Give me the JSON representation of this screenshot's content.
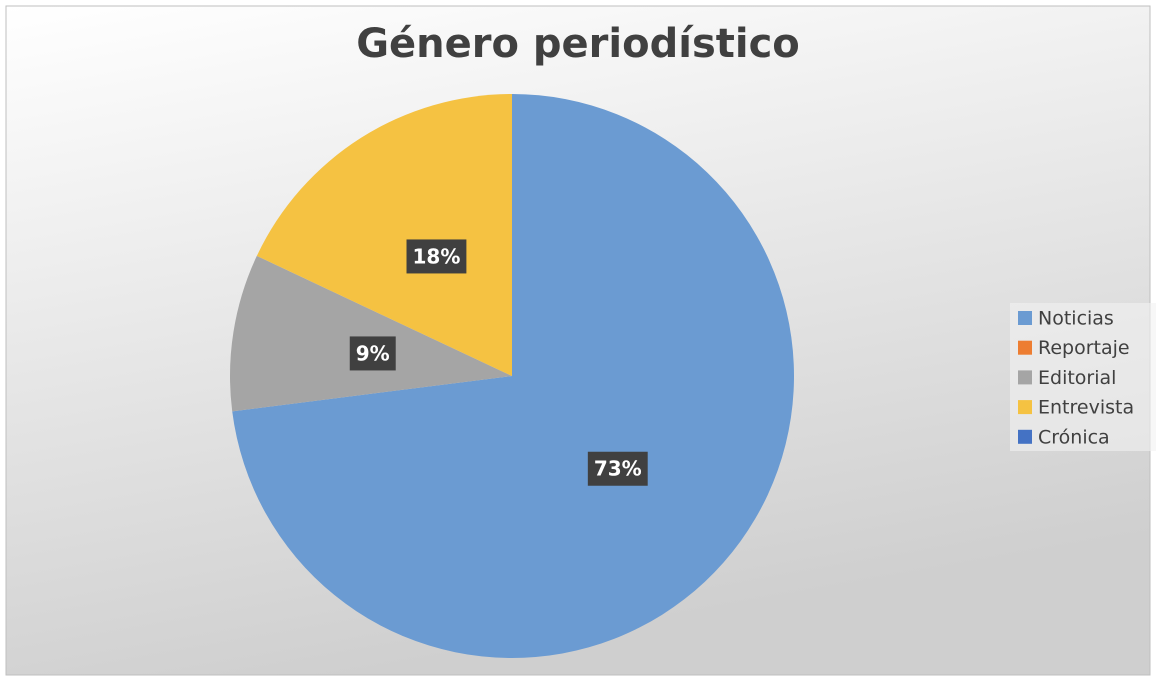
{
  "chart_data": {
    "type": "pie",
    "title": "Género periodístico",
    "categories": [
      "Noticias",
      "Reportaje",
      "Editorial",
      "Entrevista",
      "Crónica"
    ],
    "values": [
      73,
      0,
      9,
      18,
      0
    ],
    "value_labels": [
      "73%",
      null,
      "9%",
      "18%",
      null
    ],
    "colors": [
      "#6b9bd2",
      "#ed7d31",
      "#a5a5a5",
      "#f5c242",
      "#4472c4"
    ],
    "legend": "right"
  }
}
